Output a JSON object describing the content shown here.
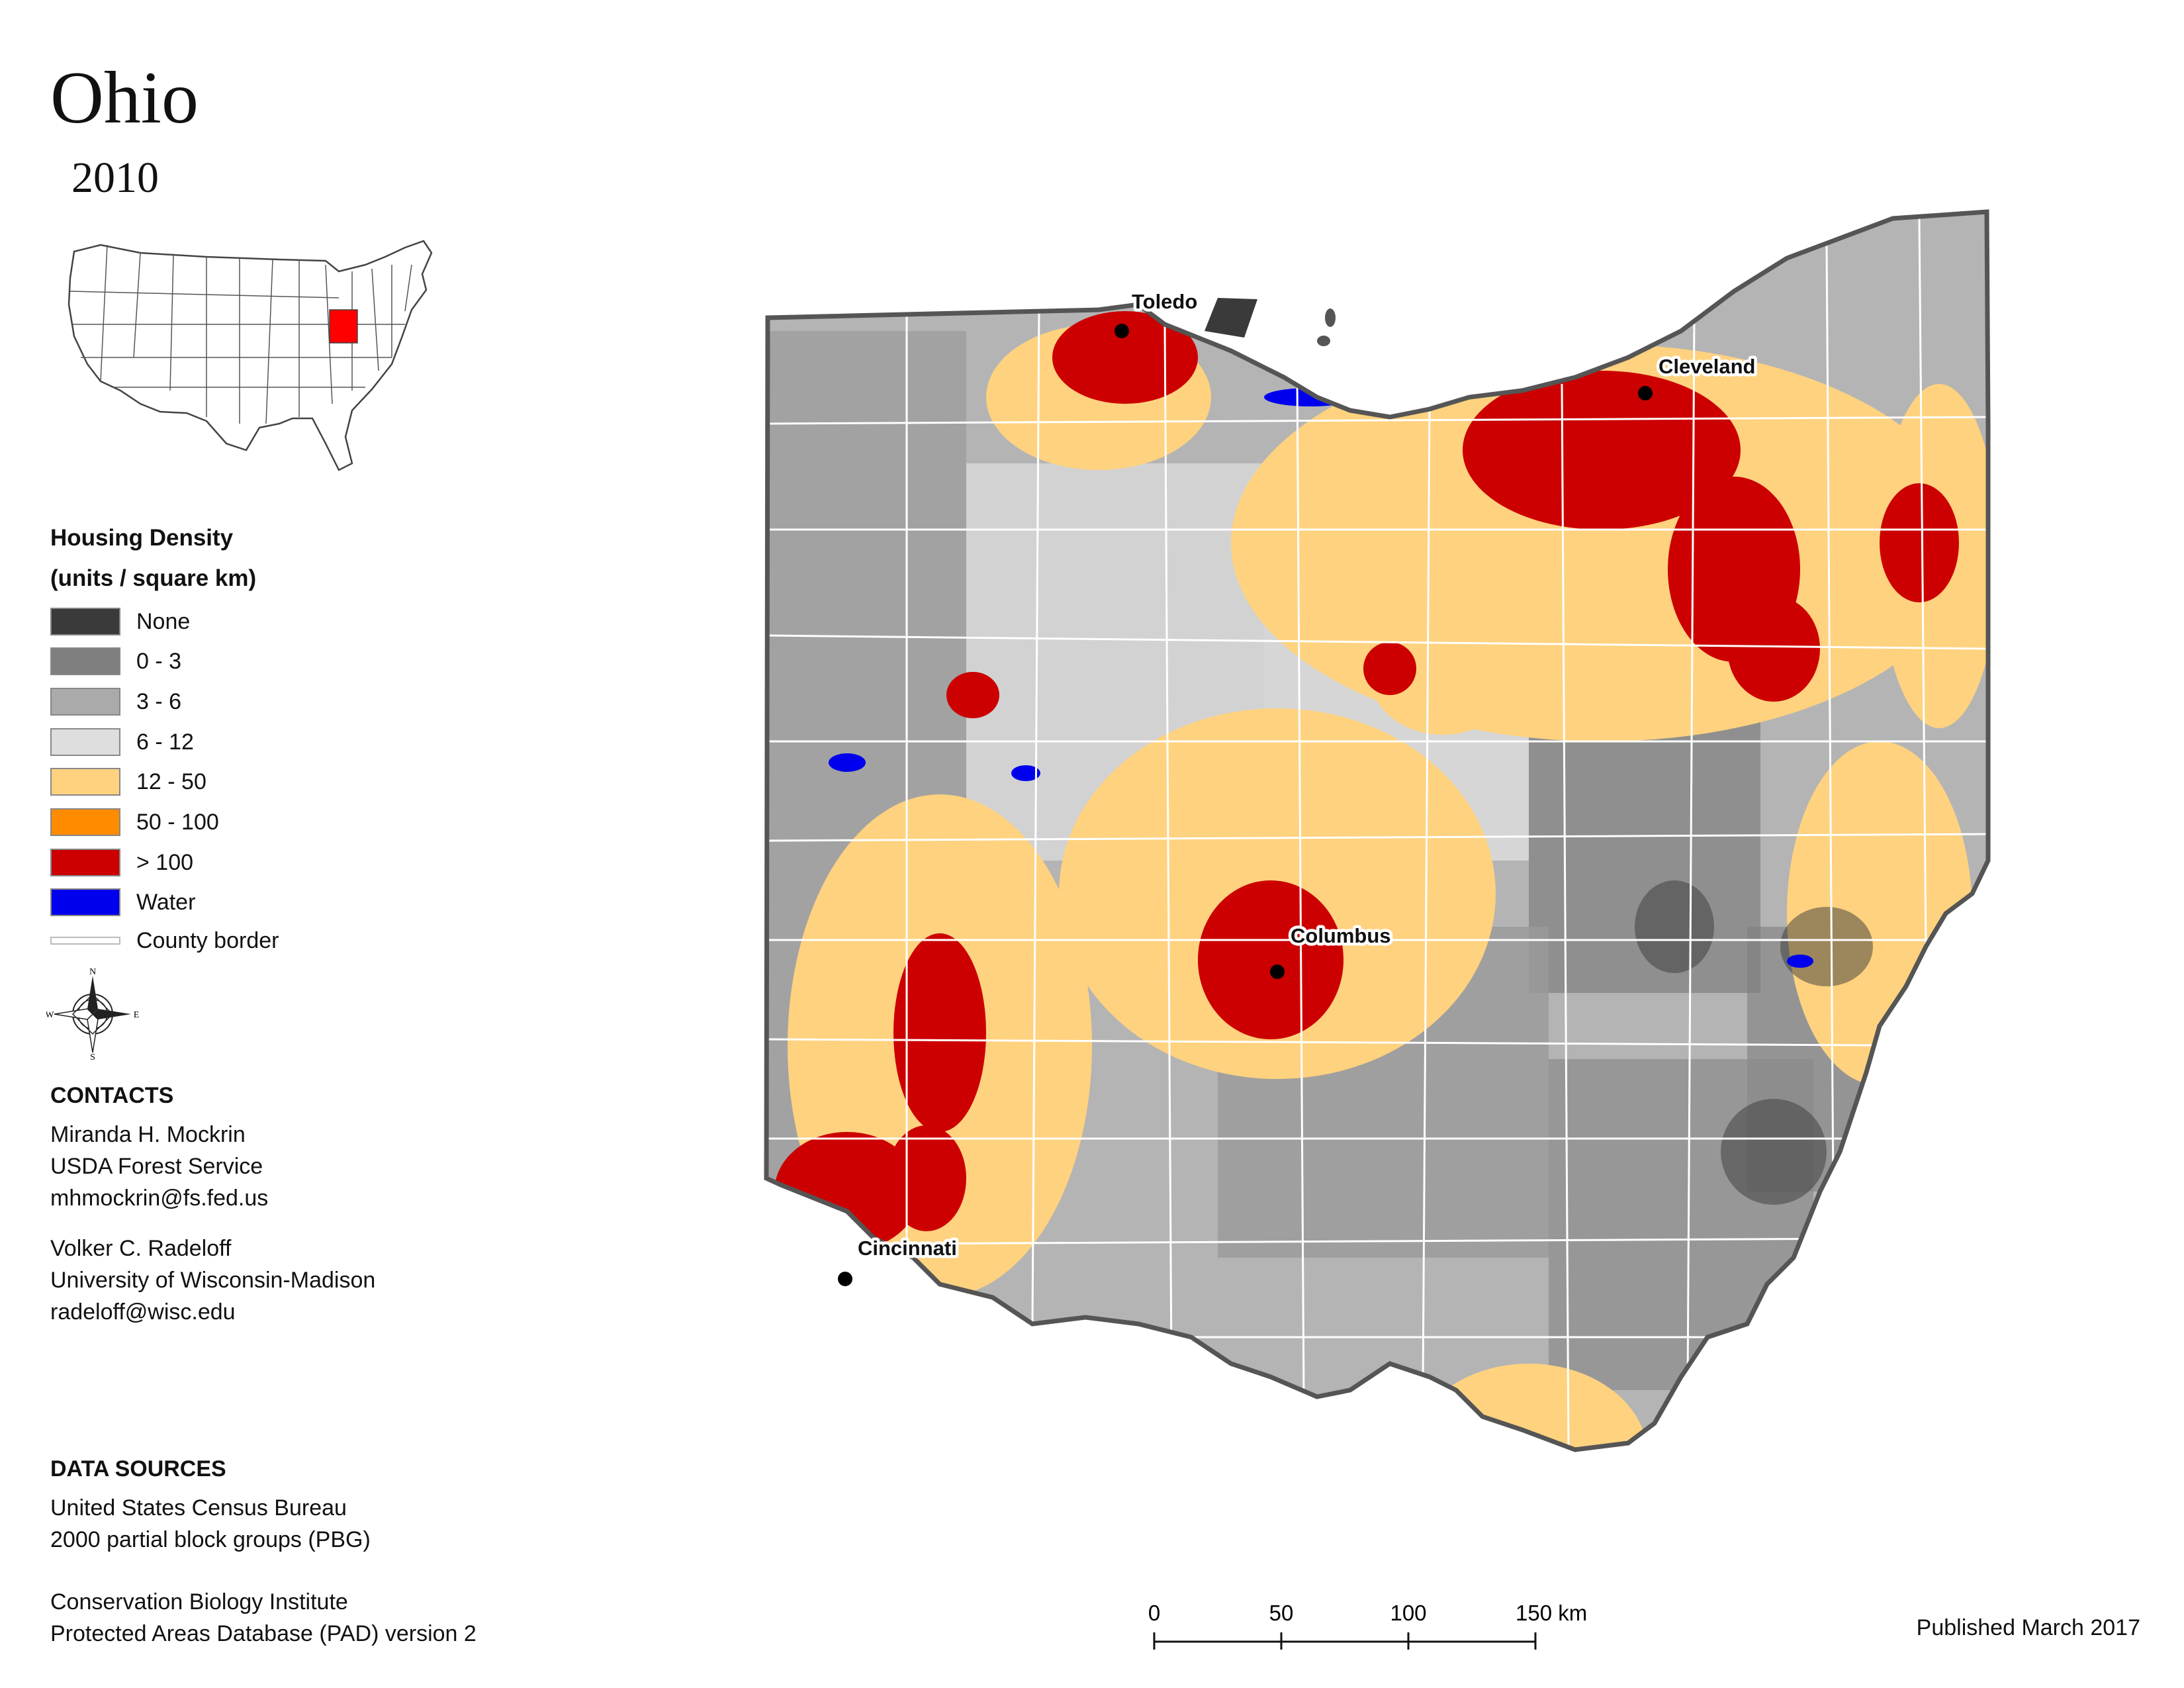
{
  "title": "Ohio",
  "year": "2010",
  "legend": {
    "title_line1": "Housing Density",
    "title_line2": "(units / square km)",
    "items": [
      {
        "label": "None",
        "color": "#3a3a3a"
      },
      {
        "label": "0 - 3",
        "color": "#7f7f7f"
      },
      {
        "label": "3 - 6",
        "color": "#aaaaaa"
      },
      {
        "label": "6 - 12",
        "color": "#dedede"
      },
      {
        "label": "12 - 50",
        "color": "#ffd27f"
      },
      {
        "label": "50 - 100",
        "color": "#ff8c00"
      },
      {
        "label": "> 100",
        "color": "#cc0000"
      },
      {
        "label": "Water",
        "color": "#0000ee"
      }
    ],
    "county_border_label": "County border"
  },
  "compass": {
    "n": "N",
    "s": "S",
    "e": "E",
    "w": "W"
  },
  "contacts": {
    "heading": "CONTACTS",
    "people": [
      {
        "name": "Miranda H. Mockrin",
        "org": "USDA Forest Service",
        "email": "mhmockrin@fs.fed.us"
      },
      {
        "name": "Volker C. Radeloff",
        "org": "University of Wisconsin-Madison",
        "email": "radeloff@wisc.edu"
      }
    ]
  },
  "data_sources": {
    "heading": "DATA SOURCES",
    "lines": [
      "United States Census Bureau",
      "2000 partial block groups (PBG)",
      "Conservation Biology Institute",
      "Protected Areas Database (PAD) version 2"
    ]
  },
  "cities": [
    {
      "name": "Toledo"
    },
    {
      "name": "Cleveland"
    },
    {
      "name": "Columbus"
    },
    {
      "name": "Cincinnati"
    }
  ],
  "scale": {
    "ticks": [
      "0",
      "50",
      "100",
      "150 km"
    ]
  },
  "published": "Published March 2017",
  "colors": {
    "state_outline": "#555555",
    "county_border": "#ffffff",
    "city_dot": "#000000"
  }
}
